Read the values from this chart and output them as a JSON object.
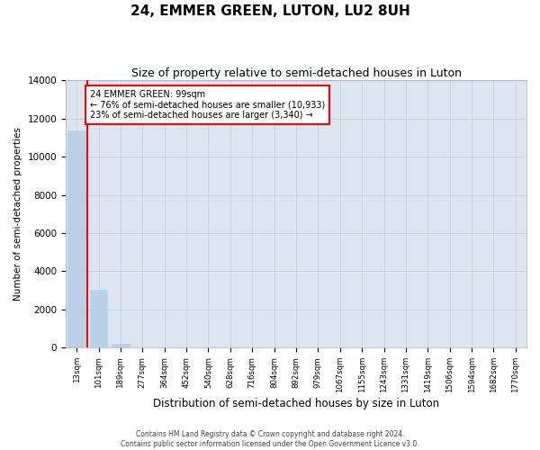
{
  "title": "24, EMMER GREEN, LUTON, LU2 8UH",
  "subtitle": "Size of property relative to semi-detached houses in Luton",
  "xlabel": "Distribution of semi-detached houses by size in Luton",
  "ylabel": "Number of semi-detached properties",
  "categories": [
    "13sqm",
    "101sqm",
    "189sqm",
    "277sqm",
    "364sqm",
    "452sqm",
    "540sqm",
    "628sqm",
    "716sqm",
    "804sqm",
    "892sqm",
    "979sqm",
    "1067sqm",
    "1155sqm",
    "1243sqm",
    "1331sqm",
    "1419sqm",
    "1506sqm",
    "1594sqm",
    "1682sqm",
    "1770sqm"
  ],
  "values": [
    11350,
    3050,
    200,
    30,
    10,
    5,
    3,
    2,
    1,
    1,
    1,
    1,
    0,
    0,
    0,
    0,
    0,
    0,
    0,
    0,
    0
  ],
  "bar_color": "#b8d0e8",
  "bar_edge_color": "#b8d0e8",
  "annotation_text": "24 EMMER GREEN: 99sqm\n← 76% of semi-detached houses are smaller (10,933)\n23% of semi-detached houses are larger (3,340) →",
  "ylim": [
    0,
    14000
  ],
  "yticks": [
    0,
    2000,
    4000,
    6000,
    8000,
    10000,
    12000,
    14000
  ],
  "grid_color": "#cccccc",
  "background_color": "#dce6f0",
  "footer_line1": "Contains HM Land Registry data © Crown copyright and database right 2024.",
  "footer_line2": "Contains public sector information licensed under the Open Government Licence v3.0."
}
